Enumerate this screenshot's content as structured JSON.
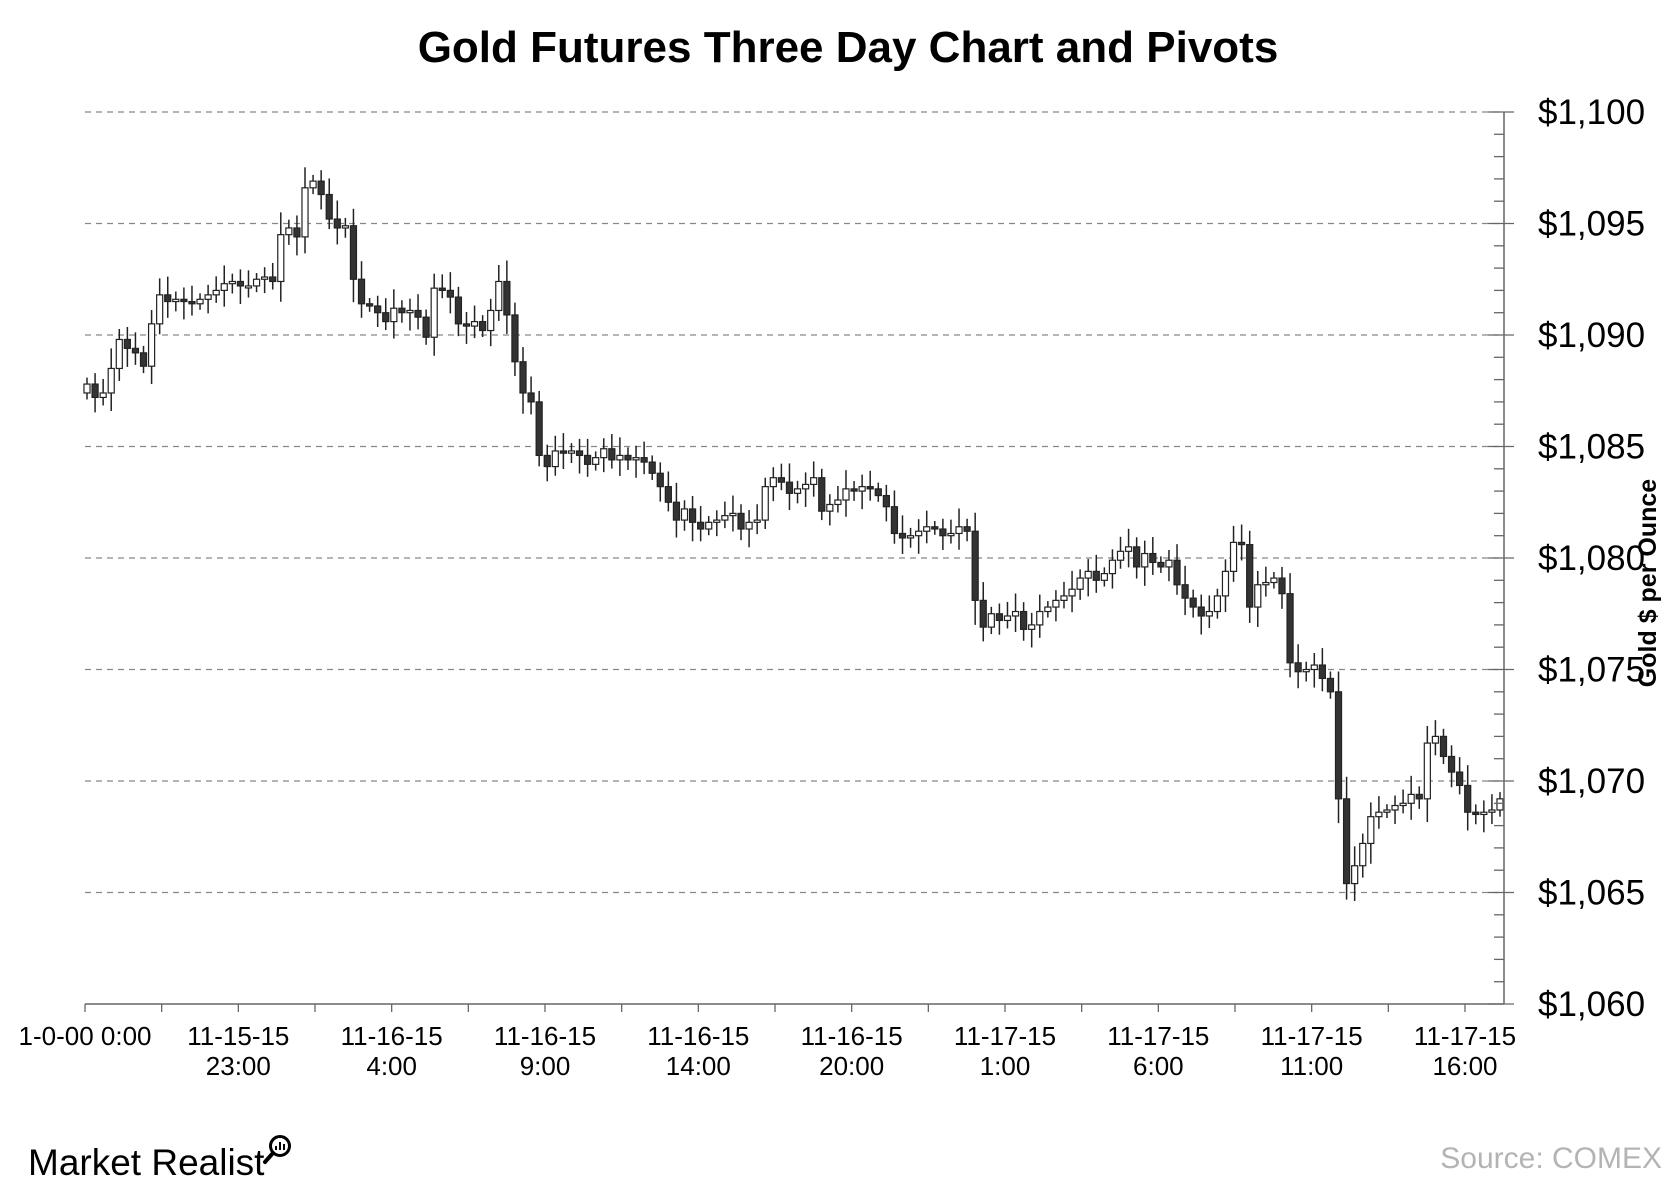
{
  "chart_data": {
    "type": "candlestick",
    "title": "Gold Futures Three Day Chart and Pivots",
    "ylabel": "Gold $ per  Ounce",
    "ylim": [
      1060,
      1100
    ],
    "y_ticks": [
      "$1,060",
      "$1,065",
      "$1,070",
      "$1,075",
      "$1,080",
      "$1,085",
      "$1,090",
      "$1,095",
      "$1,100"
    ],
    "x_ticks": [
      {
        "line1": "1-0-00 0:00",
        "line2": ""
      },
      {
        "line1": "11-15-15",
        "line2": "23:00"
      },
      {
        "line1": "11-16-15",
        "line2": "4:00"
      },
      {
        "line1": "11-16-15",
        "line2": "9:00"
      },
      {
        "line1": "11-16-15",
        "line2": "14:00"
      },
      {
        "line1": "11-16-15",
        "line2": "20:00"
      },
      {
        "line1": "11-17-15",
        "line2": "1:00"
      },
      {
        "line1": "11-17-15",
        "line2": "6:00"
      },
      {
        "line1": "11-17-15",
        "line2": "11:00"
      },
      {
        "line1": "11-17-15",
        "line2": "16:00"
      }
    ],
    "grid": "horizontal dashed",
    "y_axis_side": "right",
    "colors": {
      "up": "#ffffff",
      "down": "#333333",
      "wick": "#222222",
      "grid": "#888888"
    },
    "close_series": [
      1087.8,
      1087.2,
      1087.4,
      1088.5,
      1089.8,
      1089.4,
      1089.2,
      1088.6,
      1090.5,
      1091.8,
      1091.5,
      1091.6,
      1091.5,
      1091.4,
      1091.6,
      1091.8,
      1092.0,
      1092.3,
      1092.4,
      1092.2,
      1092.2,
      1092.5,
      1092.6,
      1092.4,
      1094.5,
      1094.8,
      1094.4,
      1096.6,
      1096.9,
      1096.3,
      1095.2,
      1094.8,
      1094.9,
      1092.5,
      1091.4,
      1091.3,
      1091.0,
      1090.6,
      1091.2,
      1091.0,
      1091.1,
      1090.8,
      1089.9,
      1092.1,
      1092.0,
      1091.7,
      1090.5,
      1090.4,
      1090.6,
      1090.2,
      1091.1,
      1092.4,
      1090.9,
      1088.8,
      1087.4,
      1087.0,
      1084.6,
      1084.1,
      1084.8,
      1084.7,
      1084.8,
      1084.6,
      1084.2,
      1084.5,
      1084.9,
      1084.4,
      1084.6,
      1084.4,
      1084.5,
      1084.3,
      1083.8,
      1083.2,
      1082.5,
      1081.7,
      1082.2,
      1081.6,
      1081.3,
      1081.6,
      1081.7,
      1081.9,
      1082.0,
      1081.3,
      1081.6,
      1081.7,
      1083.2,
      1083.6,
      1083.4,
      1082.9,
      1083.1,
      1083.3,
      1083.6,
      1082.1,
      1082.4,
      1082.6,
      1083.1,
      1083.0,
      1083.2,
      1083.1,
      1082.8,
      1082.3,
      1081.1,
      1080.9,
      1081.0,
      1081.2,
      1081.4,
      1081.3,
      1081.0,
      1081.1,
      1081.4,
      1081.2,
      1078.1,
      1076.9,
      1077.5,
      1077.2,
      1077.4,
      1077.6,
      1076.8,
      1077.0,
      1077.6,
      1077.8,
      1078.1,
      1078.3,
      1078.6,
      1079.1,
      1079.4,
      1079.0,
      1079.3,
      1079.9,
      1080.3,
      1080.5,
      1079.6,
      1080.2,
      1079.8,
      1079.6,
      1079.9,
      1078.8,
      1078.2,
      1077.8,
      1077.4,
      1077.6,
      1078.3,
      1079.4,
      1080.7,
      1080.6,
      1077.8,
      1078.8,
      1078.9,
      1079.1,
      1078.4,
      1075.3,
      1074.9,
      1075.0,
      1075.2,
      1074.6,
      1074.0,
      1069.2,
      1065.4,
      1066.2,
      1067.2,
      1068.4,
      1068.6,
      1068.7,
      1068.9,
      1069.0,
      1069.4,
      1069.2,
      1071.7,
      1072.0,
      1071.1,
      1070.4,
      1069.8,
      1068.6,
      1068.5,
      1068.6,
      1068.7,
      1069.2
    ]
  },
  "branding": {
    "name": "Market Realist"
  },
  "source": "Source: COMEX"
}
